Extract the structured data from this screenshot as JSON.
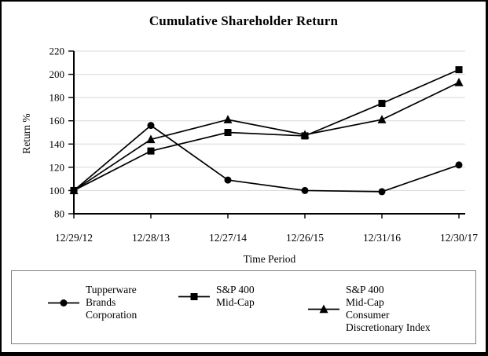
{
  "title": "Cumulative Shareholder Return",
  "chart_data": {
    "type": "line",
    "title": "Cumulative Shareholder Return",
    "xlabel": "Time Period",
    "ylabel": "Return %",
    "x_categories": [
      "12/29/12",
      "12/28/13",
      "12/27/14",
      "12/26/15",
      "12/31/16",
      "12/30/17"
    ],
    "ylim": [
      80,
      220
    ],
    "yticks": [
      80,
      100,
      120,
      140,
      160,
      180,
      200,
      220
    ],
    "grid": true,
    "legend_position": "bottom",
    "series": [
      {
        "name": "Tupperware Brands Corporation",
        "marker": "circle",
        "color": "#000000",
        "values": [
          100,
          156,
          109,
          100,
          99,
          122
        ]
      },
      {
        "name": "S&P 400 Mid-Cap",
        "marker": "square",
        "color": "#000000",
        "values": [
          100,
          134,
          150,
          147,
          175,
          204
        ]
      },
      {
        "name": "S&P 400 Mid-Cap Consumer Discretionary Index",
        "marker": "triangle",
        "color": "#000000",
        "values": [
          100,
          144,
          161,
          148,
          161,
          193
        ]
      }
    ]
  },
  "legend": {
    "items": [
      {
        "marker": "circle",
        "series": "Tupperware Brands Corporation",
        "lines": [
          "Tupperware",
          "Brands",
          "Corporation"
        ]
      },
      {
        "marker": "square",
        "series": "S&P 400 Mid-Cap",
        "lines": [
          "S&P 400",
          "Mid-Cap"
        ]
      },
      {
        "marker": "triangle",
        "series": "S&P 400 Mid-Cap Consumer Discretionary Index",
        "lines": [
          "S&P 400",
          "Mid-Cap",
          "Consumer",
          "Discretionary Index"
        ]
      }
    ]
  },
  "colors": {
    "line": "#000000",
    "grid": "#d8d8d8",
    "axis": "#000000",
    "text": "#000000",
    "frame_border": "#000000",
    "legend_border": "#7f7f7f",
    "background": "#ffffff"
  }
}
